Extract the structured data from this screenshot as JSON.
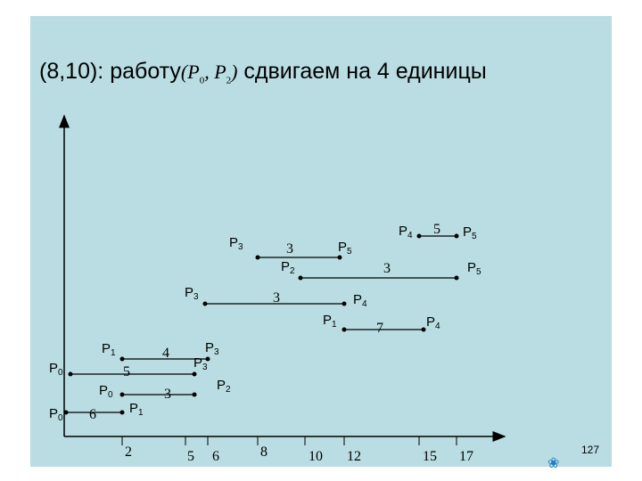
{
  "title": {
    "prefix": "(8,10): работу",
    "math_open": "(P",
    "math_sub_a": "0",
    "math_mid": ", P",
    "math_sub_b": "2",
    "math_close": ")",
    "suffix": " сдвигаем на 4 единицы"
  },
  "axis": {
    "ticks": [
      "2",
      "5",
      "6",
      "8",
      "10",
      "12",
      "15",
      "17"
    ]
  },
  "edges": [
    {
      "from": "P0",
      "to": "P1",
      "weight": "6"
    },
    {
      "from": "P0",
      "to": "P2",
      "weight": "3"
    },
    {
      "from": "P0",
      "to": "P3",
      "weight": "5"
    },
    {
      "from": "P1",
      "to": "P3",
      "weight": "4"
    },
    {
      "from": "P3",
      "to": "P4",
      "weight": "3"
    },
    {
      "from": "P3",
      "to": "P5",
      "weight": "3"
    },
    {
      "from": "P2",
      "to": "P5",
      "weight": "3"
    },
    {
      "from": "P1",
      "to": "P4",
      "weight": "7"
    },
    {
      "from": "P4",
      "to": "P5",
      "weight": "5"
    }
  ],
  "nodes": {
    "p0a": {
      "name": "P",
      "sub": "0"
    },
    "p0b": {
      "name": "P",
      "sub": "0"
    },
    "p0c": {
      "name": "P",
      "sub": "0"
    },
    "p1a": {
      "name": "P",
      "sub": "1"
    },
    "p1b": {
      "name": "P",
      "sub": "1"
    },
    "p1c": {
      "name": "P",
      "sub": "1"
    },
    "p2a": {
      "name": "P",
      "sub": "2"
    },
    "p2b": {
      "name": "P",
      "sub": "2"
    },
    "p3a": {
      "name": "P",
      "sub": "3"
    },
    "p3b": {
      "name": "P",
      "sub": "3"
    },
    "p3c": {
      "name": "P",
      "sub": "3"
    },
    "p3d": {
      "name": "P",
      "sub": "3"
    },
    "p4a": {
      "name": "P",
      "sub": "4"
    },
    "p4b": {
      "name": "P",
      "sub": "4"
    },
    "p4c": {
      "name": "P",
      "sub": "4"
    },
    "p5a": {
      "name": "P",
      "sub": "5"
    },
    "p5b": {
      "name": "P",
      "sub": "5"
    },
    "p5c": {
      "name": "P",
      "sub": "5"
    }
  },
  "page_number": "127",
  "colors": {
    "background": "#b9dde2",
    "ink": "#000000"
  }
}
